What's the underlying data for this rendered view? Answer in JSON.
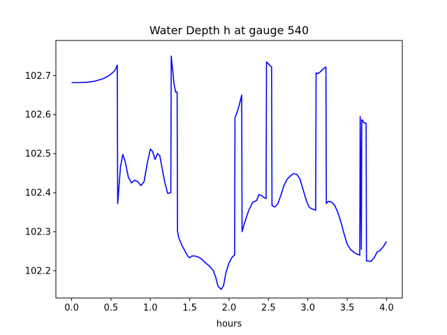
{
  "chart_data": {
    "type": "line",
    "title": "Water Depth h at gauge 540",
    "xlabel": "hours",
    "ylabel": "",
    "xlim": [
      -0.2,
      4.2
    ],
    "ylim": [
      102.13,
      102.79
    ],
    "xticks": [
      0.0,
      0.5,
      1.0,
      1.5,
      2.0,
      2.5,
      3.0,
      3.5,
      4.0
    ],
    "xtick_labels": [
      "0.0",
      "0.5",
      "1.0",
      "1.5",
      "2.0",
      "2.5",
      "3.0",
      "3.5",
      "4.0"
    ],
    "yticks": [
      102.2,
      102.3,
      102.4,
      102.5,
      102.6,
      102.7
    ],
    "ytick_labels": [
      "102.2",
      "102.3",
      "102.4",
      "102.5",
      "102.6",
      "102.7"
    ],
    "grid": false,
    "series": [
      {
        "color": "#0000ff",
        "x": [
          0.0,
          0.1,
          0.2,
          0.3,
          0.4,
          0.45,
          0.5,
          0.55,
          0.58,
          0.585,
          0.6,
          0.62,
          0.65,
          0.68,
          0.72,
          0.76,
          0.8,
          0.84,
          0.88,
          0.92,
          0.96,
          1.0,
          1.03,
          1.06,
          1.09,
          1.12,
          1.15,
          1.18,
          1.22,
          1.26,
          1.265,
          1.28,
          1.3,
          1.32,
          1.34,
          1.345,
          1.36,
          1.38,
          1.4,
          1.42,
          1.44,
          1.46,
          1.48,
          1.5,
          1.52,
          1.55,
          1.6,
          1.65,
          1.7,
          1.75,
          1.8,
          1.83,
          1.86,
          1.9,
          1.93,
          1.96,
          2.0,
          2.04,
          2.07,
          2.075,
          2.1,
          2.13,
          2.16,
          2.165,
          2.2,
          2.25,
          2.3,
          2.35,
          2.38,
          2.41,
          2.44,
          2.47,
          2.475,
          2.5,
          2.54,
          2.545,
          2.58,
          2.62,
          2.66,
          2.7,
          2.74,
          2.78,
          2.82,
          2.86,
          2.9,
          2.94,
          2.98,
          3.02,
          3.06,
          3.1,
          3.105,
          3.13,
          3.16,
          3.2,
          3.23,
          3.235,
          3.26,
          3.3,
          3.34,
          3.38,
          3.42,
          3.46,
          3.5,
          3.54,
          3.58,
          3.62,
          3.66,
          3.665,
          3.68,
          3.685,
          3.7,
          3.705,
          3.73,
          3.74,
          3.745,
          3.8,
          3.84,
          3.88,
          3.92,
          3.96,
          4.0
        ],
        "y": [
          102.682,
          102.682,
          102.683,
          102.686,
          102.692,
          102.697,
          102.704,
          102.713,
          102.727,
          102.372,
          102.41,
          102.465,
          102.498,
          102.48,
          102.44,
          102.425,
          102.432,
          102.428,
          102.418,
          102.428,
          102.475,
          102.512,
          102.505,
          102.485,
          102.5,
          102.495,
          102.462,
          102.43,
          102.398,
          102.4,
          102.75,
          102.72,
          102.68,
          102.658,
          102.658,
          102.302,
          102.285,
          102.275,
          102.265,
          102.258,
          102.25,
          102.243,
          102.236,
          102.233,
          102.237,
          102.238,
          102.236,
          102.23,
          102.22,
          102.212,
          102.2,
          102.183,
          102.16,
          102.152,
          102.162,
          102.195,
          102.22,
          102.235,
          102.24,
          102.592,
          102.605,
          102.625,
          102.65,
          102.3,
          102.325,
          102.355,
          102.375,
          102.38,
          102.395,
          102.393,
          102.388,
          102.385,
          102.735,
          102.73,
          102.722,
          102.367,
          102.363,
          102.372,
          102.395,
          102.42,
          102.435,
          102.443,
          102.449,
          102.447,
          102.435,
          102.408,
          102.38,
          102.362,
          102.358,
          102.355,
          102.707,
          102.705,
          102.71,
          102.718,
          102.722,
          102.372,
          102.378,
          102.376,
          102.368,
          102.35,
          102.325,
          102.295,
          102.268,
          102.255,
          102.248,
          102.243,
          102.24,
          102.595,
          102.255,
          102.587,
          102.585,
          102.58,
          102.578,
          102.578,
          102.225,
          102.224,
          102.232,
          102.248,
          102.252,
          102.262,
          102.275
        ]
      }
    ]
  }
}
